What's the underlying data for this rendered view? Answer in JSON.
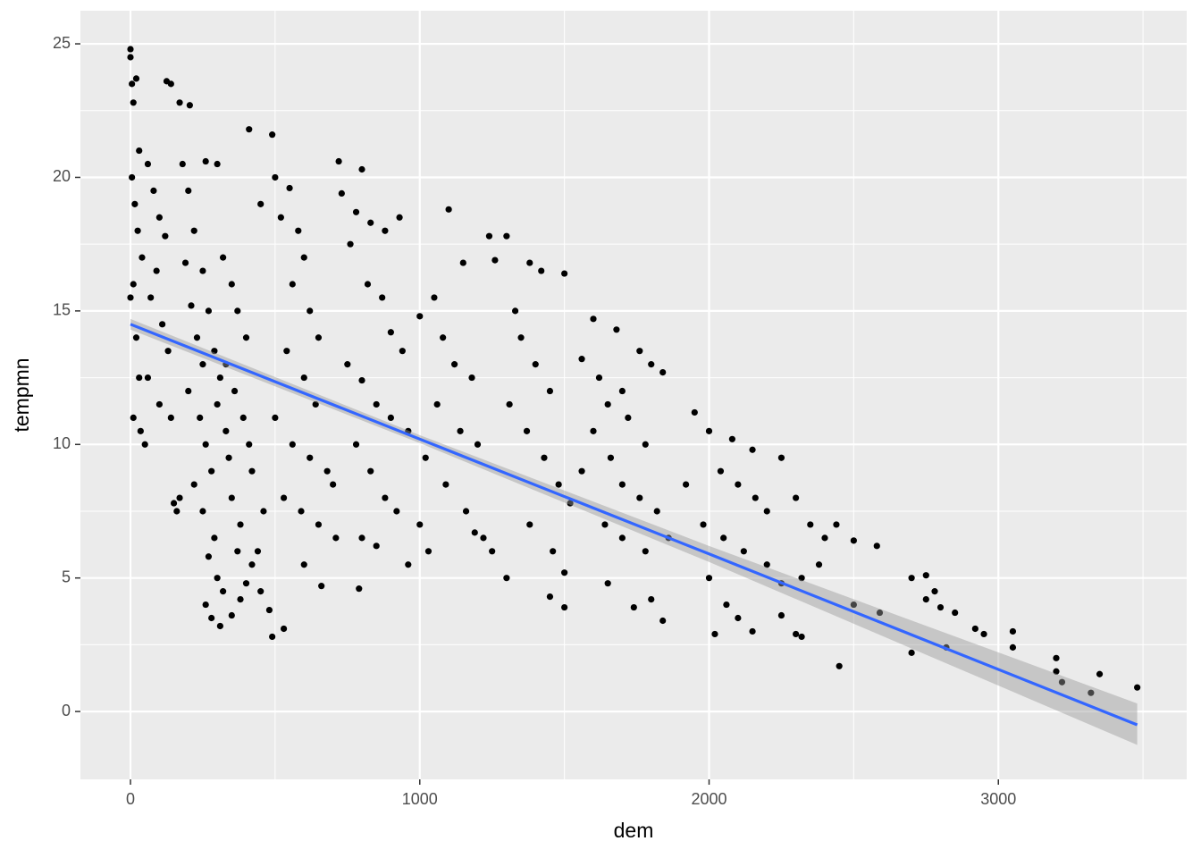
{
  "chart_data": {
    "type": "scatter",
    "x_label": "dem",
    "y_label": "tempmn",
    "xlim": [
      -173,
      3651
    ],
    "ylim": [
      -2.54,
      26.24
    ],
    "xticks": [
      0,
      1000,
      2000,
      3000
    ],
    "yticks": [
      0,
      5,
      10,
      15,
      20,
      25
    ],
    "minor_xticks": [
      500,
      1500,
      2500,
      3500
    ],
    "minor_yticks": [
      2.5,
      7.5,
      12.5,
      17.5,
      22.5
    ],
    "grid": true,
    "panel_color": "#ebebeb",
    "point_color": "#000000",
    "x": [
      0,
      0,
      5,
      10,
      20,
      30,
      5,
      15,
      25,
      40,
      10,
      0,
      20,
      30,
      10,
      35,
      50,
      60,
      80,
      100,
      120,
      90,
      70,
      110,
      130,
      60,
      100,
      140,
      150,
      160,
      170,
      125,
      140,
      170,
      180,
      200,
      220,
      190,
      210,
      230,
      250,
      200,
      240,
      260,
      280,
      220,
      250,
      290,
      270,
      300,
      320,
      260,
      280,
      310,
      350,
      380,
      400,
      420,
      450,
      480,
      490,
      530,
      205,
      300,
      260,
      320,
      350,
      370,
      400,
      330,
      360,
      390,
      410,
      420,
      350,
      380,
      440,
      460,
      300,
      330,
      250,
      270,
      290,
      310,
      340,
      370,
      410,
      490,
      500,
      550,
      450,
      520,
      580,
      600,
      560,
      620,
      650,
      540,
      600,
      640,
      500,
      560,
      620,
      680,
      700,
      530,
      590,
      650,
      710,
      600,
      660,
      720,
      800,
      730,
      780,
      830,
      880,
      930,
      760,
      820,
      870,
      900,
      940,
      750,
      800,
      850,
      900,
      960,
      780,
      830,
      880,
      920,
      800,
      850,
      790,
      960,
      1000,
      1030,
      1100,
      1150,
      1050,
      1000,
      1080,
      1120,
      1180,
      1060,
      1140,
      1200,
      1020,
      1090,
      1160,
      1220,
      1250,
      1300,
      1190,
      1240,
      1300,
      1260,
      1330,
      1380,
      1420,
      1500,
      1350,
      1400,
      1450,
      1310,
      1370,
      1430,
      1480,
      1520,
      1380,
      1460,
      1500,
      1450,
      1500,
      1600,
      1680,
      1560,
      1620,
      1700,
      1760,
      1800,
      1840,
      1650,
      1720,
      1780,
      1600,
      1660,
      1700,
      1760,
      1820,
      1560,
      1640,
      1700,
      1780,
      1860,
      1650,
      1740,
      1800,
      1840,
      1950,
      2000,
      2080,
      2150,
      2040,
      2100,
      2160,
      2200,
      1920,
      1980,
      2050,
      2120,
      2250,
      2300,
      2350,
      2400,
      2440,
      2200,
      2250,
      2320,
      2380,
      2000,
      2060,
      2100,
      2150,
      2020,
      2250,
      2300,
      2320,
      2450,
      2500,
      2580,
      2500,
      2590,
      2700,
      2750,
      2780,
      2800,
      2750,
      2850,
      2920,
      2950,
      2700,
      2820,
      3050,
      3050,
      3200,
      3200,
      3220,
      3350,
      3320,
      3480
    ],
    "y": [
      24.8,
      24.5,
      23.5,
      22.8,
      23.7,
      21,
      20,
      19,
      18,
      17,
      16,
      15.5,
      14,
      12.5,
      11,
      10.5,
      10,
      20.5,
      19.5,
      18.5,
      17.8,
      16.5,
      15.5,
      14.5,
      13.5,
      12.5,
      11.5,
      11,
      7.8,
      7.5,
      8,
      23.6,
      23.5,
      22.8,
      20.5,
      19.5,
      18,
      16.8,
      15.2,
      14,
      13,
      12,
      11,
      10,
      9,
      8.5,
      7.5,
      6.5,
      5.8,
      5,
      4.5,
      4,
      3.5,
      3.2,
      3.6,
      4.2,
      4.8,
      5.5,
      4.5,
      3.8,
      2.8,
      3.1,
      22.7,
      20.5,
      20.6,
      17,
      16,
      15,
      14,
      13,
      12,
      11,
      10,
      9,
      8,
      7,
      6,
      7.5,
      11.5,
      10.5,
      16.5,
      15,
      13.5,
      12.5,
      9.5,
      6,
      21.8,
      21.6,
      20,
      19.6,
      19,
      18.5,
      18,
      17,
      16,
      15,
      14,
      13.5,
      12.5,
      11.5,
      11,
      10,
      9.5,
      9,
      8.5,
      8,
      7.5,
      7,
      6.5,
      5.5,
      4.7,
      20.6,
      20.3,
      19.4,
      18.7,
      18.3,
      18,
      18.5,
      17.5,
      16,
      15.5,
      14.2,
      13.5,
      13,
      12.4,
      11.5,
      11,
      10.5,
      10,
      9,
      8,
      7.5,
      6.5,
      6.2,
      4.6,
      5.5,
      7,
      6,
      18.8,
      16.8,
      15.5,
      14.8,
      14,
      13,
      12.5,
      11.5,
      10.5,
      10,
      9.5,
      8.5,
      7.5,
      6.5,
      6,
      5,
      6.7,
      17.8,
      17.8,
      16.9,
      15,
      16.8,
      16.5,
      16.4,
      14,
      13,
      12,
      11.5,
      10.5,
      9.5,
      8.5,
      7.8,
      7,
      6,
      5.2,
      4.3,
      3.9,
      14.7,
      14.3,
      13.2,
      12.5,
      12,
      13.5,
      13,
      12.7,
      11.5,
      11,
      10,
      10.5,
      9.5,
      8.5,
      8,
      7.5,
      9,
      7,
      6.5,
      6,
      6.5,
      4.8,
      3.9,
      4.2,
      3.4,
      11.2,
      10.5,
      10.2,
      9.8,
      9,
      8.5,
      8,
      7.5,
      8.5,
      7,
      6.5,
      6,
      9.5,
      8,
      7,
      6.5,
      7,
      5.5,
      4.8,
      5,
      5.5,
      5,
      4,
      3.5,
      3,
      2.9,
      3.6,
      2.9,
      2.8,
      1.7,
      6.4,
      6.2,
      4,
      3.7,
      5,
      5.1,
      4.5,
      3.9,
      4.2,
      3.7,
      3.1,
      2.9,
      2.2,
      2.4,
      3,
      2.4,
      2,
      1.5,
      1.1,
      1.4,
      0.7,
      0.9
    ],
    "fit": {
      "color": "#3366ff",
      "band_color": "#999999",
      "x": [
        0,
        1000,
        2000,
        3480
      ],
      "y": [
        14.5,
        10.2,
        5.9,
        -0.5
      ],
      "lower": [
        14.3,
        10.05,
        5.6,
        -1.25
      ],
      "upper": [
        14.7,
        10.35,
        6.2,
        0.3
      ]
    }
  }
}
